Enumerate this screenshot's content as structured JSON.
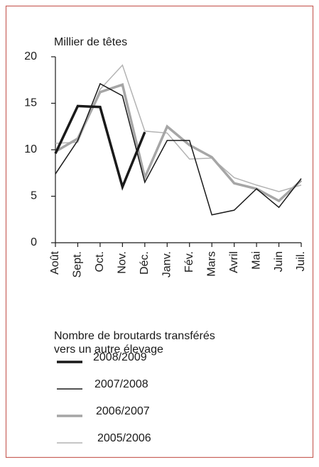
{
  "chart_data": {
    "type": "line",
    "y_axis_title": "Millier de têtes",
    "categories": [
      "Août",
      "Sept.",
      "Oct.",
      "Nov.",
      "Déc.",
      "Janv.",
      "Fév.",
      "Mars",
      "Avril",
      "Mai",
      "Juin",
      "Juil."
    ],
    "ylim": [
      0,
      20
    ],
    "yticks": [
      0,
      5,
      10,
      15,
      20
    ],
    "legend_title": [
      "Nombre de broutards transférés",
      "vers un autre élevage"
    ],
    "series": [
      {
        "name": "2008/2009",
        "color": "#1a1a1a",
        "line_width": 3.5,
        "values": [
          9.6,
          14.7,
          14.6,
          6.0,
          11.9,
          null,
          null,
          null,
          null,
          null,
          null,
          null
        ]
      },
      {
        "name": "2007/2008",
        "color": "#1a1a1a",
        "line_width": 1.5,
        "values": [
          7.4,
          11.0,
          17.1,
          15.8,
          6.5,
          11.0,
          11.0,
          3.0,
          3.5,
          5.8,
          3.8,
          6.9
        ]
      },
      {
        "name": "2006/2007",
        "color": "#a6a6a6",
        "line_width": 3.5,
        "values": [
          9.8,
          11.2,
          16.2,
          17.0,
          7.0,
          12.5,
          10.5,
          9.2,
          6.4,
          5.8,
          4.5,
          6.7
        ]
      },
      {
        "name": "2005/2006",
        "color": "#b3b3b3",
        "line_width": 1.5,
        "values": [
          10.7,
          10.8,
          16.5,
          19.1,
          12.0,
          11.8,
          9.0,
          9.1,
          7.0,
          6.2,
          5.5,
          6.2
        ]
      }
    ]
  }
}
